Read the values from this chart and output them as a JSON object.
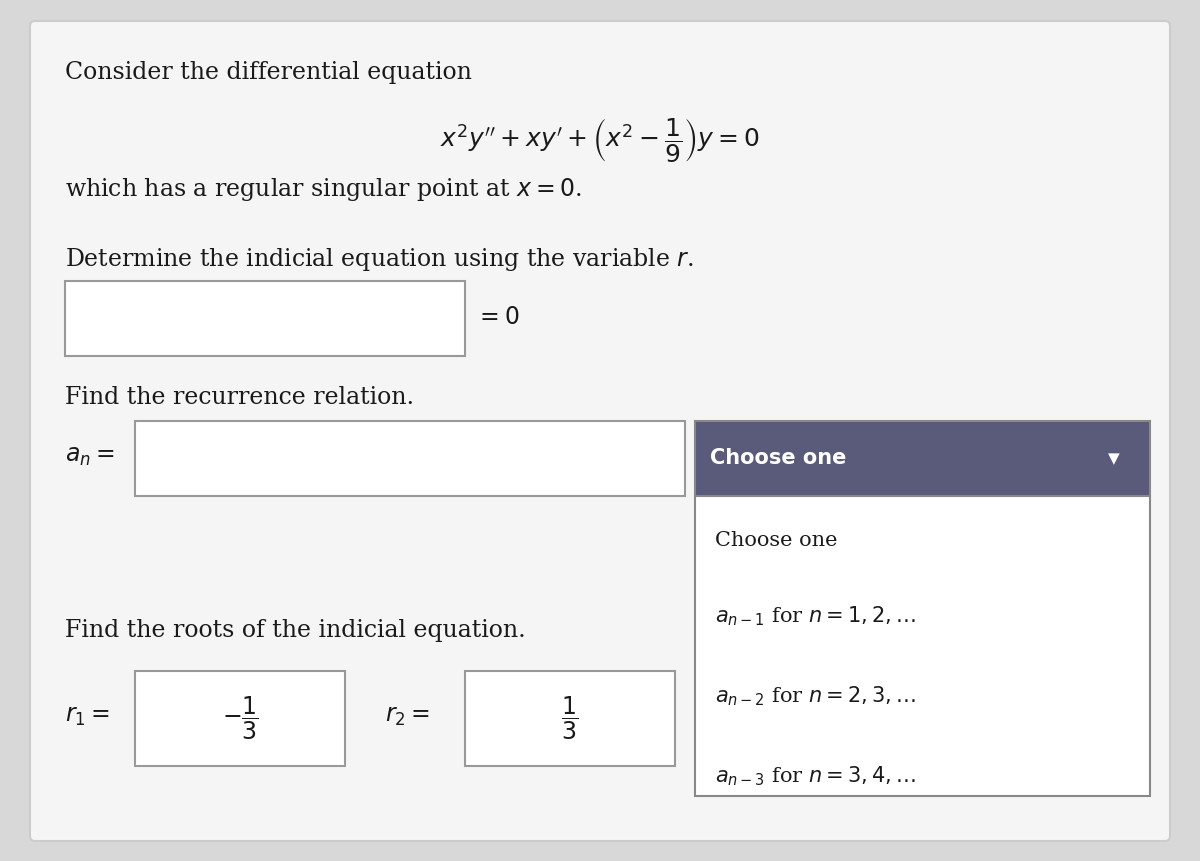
{
  "bg_color": "#d8d8d8",
  "card_color": "#f5f5f5",
  "card_border": "#cccccc",
  "title_text": "Consider the differential equation",
  "equation": "$x^2y'' + xy' + \\left(x^2 - \\dfrac{1}{9}\\right)y = 0$",
  "singular_point_text": "which has a regular singular point at $x = 0$.",
  "indicial_label": "Determine the indicial equation using the variable $r$.",
  "equals_zero": "$= 0$",
  "recurrence_label": "Find the recurrence relation.",
  "an_label": "$a_n =$",
  "choose_one_header": "Choose one",
  "dropdown_arrow": "▼",
  "choose_one_item": "Choose one",
  "item1": "$a_{n-1}$ for $n = 1, 2, \\ldots$",
  "item2": "$a_{n-2}$ for $n = 2, 3, \\ldots$",
  "item3": "$a_{n-3}$ for $n = 3, 4, \\ldots$",
  "roots_label": "Find the roots of the indicial equation.",
  "r1_label": "$r_1 =$",
  "r1_value": "$-\\dfrac{1}{3}$",
  "r2_label": "$r_2 =$",
  "r2_value": "$\\dfrac{1}{3}$",
  "input_box_color": "#ffffff",
  "input_box_border": "#999999",
  "dropdown_header_color": "#5a5a7a",
  "dropdown_header_text_color": "#ffffff",
  "dropdown_body_color": "#ffffff",
  "dropdown_body_border": "#aaaaaa",
  "font_color": "#1a1a1a"
}
